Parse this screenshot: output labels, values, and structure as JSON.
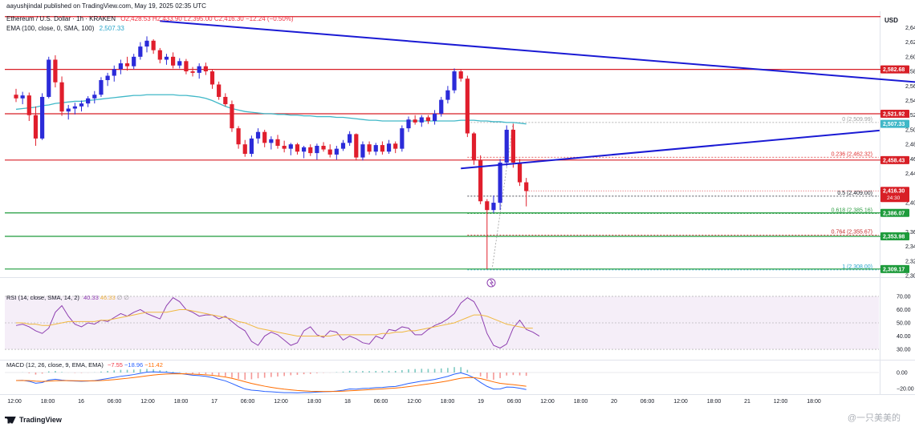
{
  "header": {
    "published": "aayushjindal published on TradingView.com, May 19, 2025 02:35 UTC",
    "symbol": "Ethereum / U.S. Dollar · 1h · KRAKEN",
    "ohlc": "O2,428.53  H2,433.90  L2,395.00  C2,416.30  −12.24 (−0.50%)",
    "ema_label": "EMA (100, close, 0, SMA, 100)",
    "ema_value": "2,507.33",
    "currency": "USD"
  },
  "colors": {
    "up": "#2b2bd9",
    "down": "#e01e2c",
    "ema": "#40b8c8",
    "trendline": "#1a1ad4",
    "level_red": "#d81f26",
    "level_green": "#1e9b3c",
    "rsi": "#8e3fb0",
    "rsi_ma": "#f0b840",
    "macd": "#2962ff",
    "macd_signal": "#ff6d00"
  },
  "chart_data": {
    "type": "candlestick",
    "title": "Ethereum / U.S. Dollar · 1h · KRAKEN",
    "ylim": [
      2298,
      2658
    ],
    "y_ticks": [
      "2,640.00",
      "2,620.00",
      "2,600.00",
      "2,580.00",
      "2,560.00",
      "2,540.00",
      "2,520.00",
      "2,500.00",
      "2,480.00",
      "2,460.00",
      "2,440.00",
      "2,400.00",
      "2,360.00",
      "2,340.00",
      "2,320.00",
      "2,300.00"
    ],
    "y_tick_values": [
      2640,
      2620,
      2600,
      2580,
      2560,
      2540,
      2520,
      2500,
      2480,
      2460,
      2440,
      2400,
      2360,
      2340,
      2320,
      2300
    ],
    "x_ticks": [
      "12:00",
      "18:00",
      "16",
      "06:00",
      "12:00",
      "18:00",
      "17",
      "06:00",
      "12:00",
      "18:00",
      "18",
      "06:00",
      "12:00",
      "18:00",
      "19",
      "06:00",
      "12:00",
      "18:00",
      "20",
      "06:00",
      "12:00",
      "18:00",
      "21",
      "12:00",
      "18:00"
    ],
    "candles": [
      [
        2548,
        2556,
        2538,
        2543
      ],
      [
        2543,
        2552,
        2535,
        2547
      ],
      [
        2547,
        2551,
        2512,
        2520
      ],
      [
        2520,
        2532,
        2478,
        2488
      ],
      [
        2488,
        2550,
        2486,
        2545
      ],
      [
        2545,
        2600,
        2543,
        2596
      ],
      [
        2596,
        2602,
        2558,
        2565
      ],
      [
        2565,
        2573,
        2519,
        2525
      ],
      [
        2525,
        2534,
        2514,
        2529
      ],
      [
        2529,
        2537,
        2521,
        2532
      ],
      [
        2532,
        2540,
        2525,
        2536
      ],
      [
        2536,
        2546,
        2531,
        2543
      ],
      [
        2543,
        2553,
        2536,
        2548
      ],
      [
        2548,
        2572,
        2545,
        2568
      ],
      [
        2568,
        2578,
        2560,
        2574
      ],
      [
        2574,
        2588,
        2566,
        2583
      ],
      [
        2583,
        2596,
        2576,
        2591
      ],
      [
        2591,
        2600,
        2581,
        2587
      ],
      [
        2587,
        2604,
        2583,
        2600
      ],
      [
        2600,
        2620,
        2596,
        2614
      ],
      [
        2614,
        2628,
        2606,
        2622
      ],
      [
        2622,
        2624,
        2604,
        2609
      ],
      [
        2609,
        2612,
        2591,
        2596
      ],
      [
        2596,
        2604,
        2589,
        2600
      ],
      [
        2600,
        2606,
        2584,
        2588
      ],
      [
        2588,
        2598,
        2584,
        2594
      ],
      [
        2594,
        2597,
        2576,
        2580
      ],
      [
        2580,
        2586,
        2573,
        2578
      ],
      [
        2578,
        2591,
        2570,
        2587
      ],
      [
        2587,
        2592,
        2575,
        2580
      ],
      [
        2580,
        2582,
        2556,
        2562
      ],
      [
        2562,
        2566,
        2541,
        2545
      ],
      [
        2545,
        2550,
        2532,
        2535
      ],
      [
        2535,
        2540,
        2497,
        2502
      ],
      [
        2502,
        2505,
        2474,
        2480
      ],
      [
        2480,
        2486,
        2463,
        2467
      ],
      [
        2467,
        2492,
        2463,
        2488
      ],
      [
        2488,
        2502,
        2481,
        2497
      ],
      [
        2497,
        2500,
        2476,
        2482
      ],
      [
        2482,
        2491,
        2473,
        2487
      ],
      [
        2487,
        2493,
        2474,
        2478
      ],
      [
        2478,
        2485,
        2469,
        2474
      ],
      [
        2474,
        2482,
        2465,
        2480
      ],
      [
        2480,
        2482,
        2466,
        2470
      ],
      [
        2470,
        2478,
        2461,
        2476
      ],
      [
        2476,
        2480,
        2464,
        2468
      ],
      [
        2468,
        2481,
        2459,
        2478
      ],
      [
        2478,
        2483,
        2470,
        2473
      ],
      [
        2473,
        2480,
        2462,
        2466
      ],
      [
        2466,
        2478,
        2459,
        2474
      ],
      [
        2474,
        2486,
        2471,
        2482
      ],
      [
        2482,
        2498,
        2478,
        2494
      ],
      [
        2494,
        2495,
        2458,
        2462
      ],
      [
        2462,
        2484,
        2458,
        2480
      ],
      [
        2480,
        2484,
        2466,
        2470
      ],
      [
        2470,
        2482,
        2465,
        2479
      ],
      [
        2479,
        2484,
        2466,
        2470
      ],
      [
        2470,
        2486,
        2467,
        2481
      ],
      [
        2481,
        2484,
        2468,
        2474
      ],
      [
        2474,
        2506,
        2470,
        2502
      ],
      [
        2502,
        2518,
        2497,
        2514
      ],
      [
        2514,
        2520,
        2507,
        2510
      ],
      [
        2510,
        2520,
        2504,
        2517
      ],
      [
        2517,
        2520,
        2508,
        2512
      ],
      [
        2512,
        2527,
        2507,
        2522
      ],
      [
        2522,
        2545,
        2518,
        2541
      ],
      [
        2541,
        2560,
        2536,
        2554
      ],
      [
        2554,
        2584,
        2550,
        2580
      ],
      [
        2580,
        2582,
        2566,
        2570
      ],
      [
        2570,
        2574,
        2490,
        2495
      ],
      [
        2495,
        2497,
        2452,
        2458
      ],
      [
        2458,
        2465,
        2398,
        2402
      ],
      [
        2402,
        2405,
        2309,
        2390
      ],
      [
        2390,
        2410,
        2386,
        2400
      ],
      [
        2400,
        2460,
        2390,
        2455
      ],
      [
        2455,
        2506,
        2450,
        2500
      ],
      [
        2500,
        2508,
        2448,
        2455
      ],
      [
        2455,
        2460,
        2423,
        2428
      ],
      [
        2428,
        2434,
        2395,
        2416
      ]
    ],
    "ema100": [
      2528,
      2529,
      2530,
      2531,
      2533,
      2534,
      2536,
      2537,
      2538,
      2539,
      2539,
      2540,
      2541,
      2542,
      2543,
      2544,
      2545,
      2546,
      2547,
      2547,
      2548,
      2548,
      2548,
      2548,
      2548,
      2547,
      2547,
      2546,
      2545,
      2543,
      2540,
      2536,
      2532,
      2529,
      2527,
      2525,
      2524,
      2523,
      2522,
      2522,
      2521,
      2521,
      2520,
      2520,
      2519,
      2519,
      2518,
      2518,
      2518,
      2517,
      2517,
      2516,
      2515,
      2514,
      2513,
      2513,
      2512,
      2512,
      2512,
      2512,
      2512,
      2512,
      2512,
      2512,
      2512,
      2512,
      2512,
      2512,
      2513,
      2513,
      2513,
      2512,
      2512,
      2511,
      2511,
      2510,
      2510,
      2509,
      2508
    ],
    "hlines": [
      {
        "price": 2655,
        "color": "red"
      },
      {
        "price": 2582.68,
        "color": "red",
        "label": "2,582.68"
      },
      {
        "price": 2521.92,
        "color": "red",
        "label": "2,521.92"
      },
      {
        "price": 2458.43,
        "color": "red",
        "label": "2,458.43"
      },
      {
        "price": 2386.07,
        "color": "green",
        "label": "2,386.07"
      },
      {
        "price": 2353.98,
        "color": "green",
        "label": "2,353.98"
      },
      {
        "price": 2309.17,
        "color": "green",
        "label": "2,309.17"
      }
    ],
    "last_price": {
      "label": "2,416.30",
      "timer": "24:30",
      "price": 2416.3
    },
    "ema_tag": {
      "label": "2,507.33"
    },
    "fib": [
      {
        "ratio_label": "0 (2,509.99)",
        "price": 2509.99,
        "color": "#9e9e9e"
      },
      {
        "ratio_label": "0.236 (2,462.32)",
        "price": 2462.32,
        "color": "#e03131"
      },
      {
        "ratio_label": "0.5 (2,409.00)",
        "price": 2409.0,
        "color": "#131722"
      },
      {
        "ratio_label": "0.618 (2,385.16)",
        "price": 2385.16,
        "color": "#2e9e44"
      },
      {
        "ratio_label": "0.764 (2,355.67)",
        "price": 2355.67,
        "color": "#c62828"
      },
      {
        "ratio_label": "1 (2,308.00)",
        "price": 2308.0,
        "color": "#26a5c9"
      }
    ],
    "trendlines": [
      {
        "p1": [
          42,
          2649
        ],
        "p2": [
          198,
          2536
        ]
      },
      {
        "p1": [
          88,
          2447
        ],
        "p2": [
          152,
          2499
        ]
      }
    ]
  },
  "rsi": {
    "label": "RSI (14, close, SMA, 14, 2)",
    "value": "40.33",
    "ma_value": "46.33",
    "ticks": [
      "70.00",
      "60.00",
      "50.00",
      "40.00",
      "30.00"
    ],
    "tick_values": [
      70,
      60,
      50,
      40,
      30
    ],
    "values": [
      48,
      49,
      47,
      44,
      42,
      46,
      58,
      63,
      55,
      49,
      47,
      50,
      49,
      52,
      51,
      54,
      57,
      55,
      58,
      60,
      57,
      55,
      53,
      63,
      69,
      66,
      60,
      58,
      55,
      56,
      56,
      53,
      55,
      51,
      47,
      44,
      36,
      33,
      40,
      43,
      41,
      37,
      33,
      35,
      44,
      47,
      41,
      39,
      44,
      43,
      37,
      40,
      38,
      35,
      34,
      40,
      38,
      45,
      44,
      47,
      46,
      41,
      41,
      45,
      48,
      50,
      53,
      57,
      65,
      69,
      66,
      57,
      42,
      33,
      31,
      34,
      46,
      52,
      45,
      43,
      40
    ],
    "ma": [
      50,
      50,
      49,
      49,
      48,
      48,
      49,
      50,
      51,
      51,
      51,
      51,
      51,
      52,
      52,
      53,
      54,
      55,
      56,
      57,
      58,
      58,
      58,
      58,
      59,
      60,
      60,
      59,
      58,
      57,
      56,
      55,
      54,
      53,
      51,
      50,
      48,
      46,
      45,
      44,
      43,
      42,
      41,
      40,
      40,
      40,
      40,
      40,
      40,
      41,
      41,
      41,
      41,
      41,
      41,
      41,
      42,
      42,
      43,
      43,
      44,
      44,
      45,
      46,
      47,
      48,
      49,
      50,
      52,
      54,
      56,
      56,
      55,
      53,
      51,
      49,
      48,
      47,
      46,
      46
    ]
  },
  "macd": {
    "label": "MACD (12, 26, close, 9, EMA, EMA)",
    "values": [
      "−7.55",
      "−18.96",
      "−11.42"
    ],
    "ticks": [
      "0.00",
      "−20.00"
    ],
    "tick_values": [
      0,
      -20
    ]
  },
  "watermark": "@一只美美的",
  "logo": "TradingView"
}
